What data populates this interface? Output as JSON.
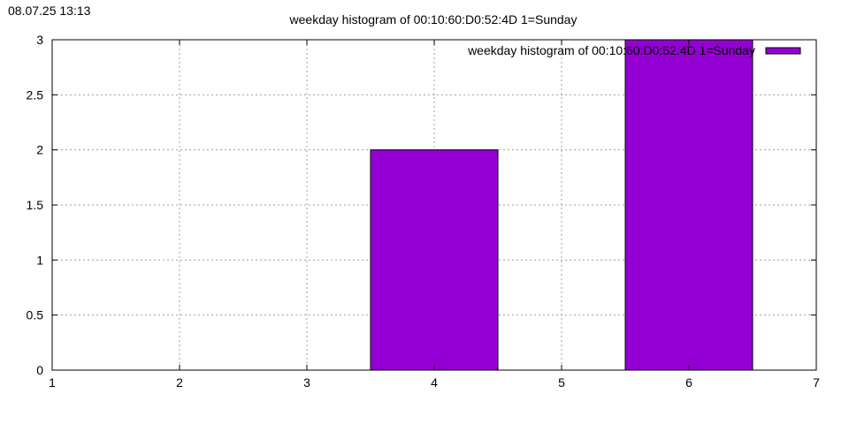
{
  "timestamp": "08.07.25 13:13",
  "chart_data": {
    "type": "bar",
    "title": "weekday histogram of 00:10:60:D0:52:4D 1=Sunday",
    "xlabel": "",
    "ylabel": "",
    "x": [
      4,
      6
    ],
    "values": [
      2,
      3
    ],
    "bar_width": 1,
    "xlim": [
      1,
      7
    ],
    "ylim": [
      0,
      3
    ],
    "xticks": [
      "1",
      "2",
      "3",
      "4",
      "5",
      "6",
      "7"
    ],
    "yticks": [
      "0",
      "0.5",
      "1",
      "1.5",
      "2",
      "2.5",
      "3"
    ],
    "grid": true,
    "legend": {
      "label": "weekday histogram of 00:10:60:D0:52:4D 1=Sunday",
      "position": "top-right"
    },
    "series": [
      {
        "name": "weekday histogram of 00:10:60:D0:52:4D 1=Sunday",
        "values": [
          2,
          3
        ],
        "color": "#9400d3"
      }
    ]
  }
}
